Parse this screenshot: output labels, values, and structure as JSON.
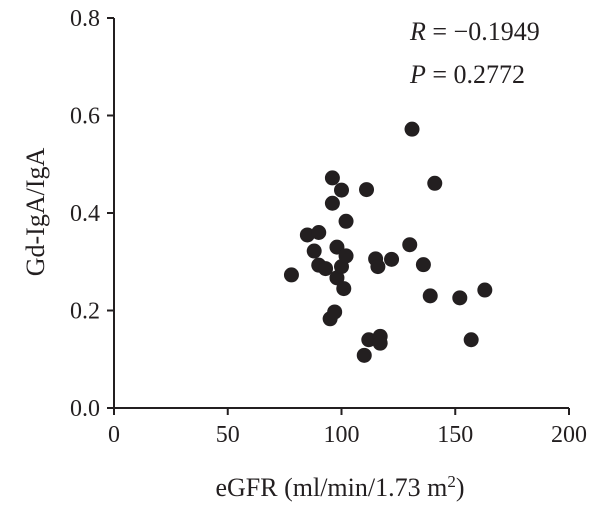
{
  "chart_data": {
    "type": "scatter",
    "xlabel": "eGFR (ml/min/1.73 m",
    "xlabel_sup": "2",
    "xlabel_close": ")",
    "ylabel": "Gd-IgA/IgA",
    "xlim": [
      0,
      200
    ],
    "ylim": [
      0,
      0.8
    ],
    "x_ticks": [
      0,
      50,
      100,
      150,
      200
    ],
    "x_tick_labels": [
      "0",
      "50",
      "100",
      "150",
      "200"
    ],
    "y_ticks": [
      0,
      0.2,
      0.4,
      0.6,
      0.8
    ],
    "y_tick_labels": [
      "0.0",
      "0.2",
      "0.4",
      "0.6",
      "0.8"
    ],
    "grid": false,
    "legend": "none",
    "marker_color": "#231f20",
    "annotations": {
      "r_symbol": "R",
      "r_value": " = −0.1949",
      "p_symbol": "P",
      "p_value": " = 0.2772"
    },
    "points": [
      {
        "x": 78,
        "y": 0.273
      },
      {
        "x": 85,
        "y": 0.355
      },
      {
        "x": 88,
        "y": 0.322
      },
      {
        "x": 90,
        "y": 0.293
      },
      {
        "x": 90,
        "y": 0.36
      },
      {
        "x": 93,
        "y": 0.286
      },
      {
        "x": 95,
        "y": 0.183
      },
      {
        "x": 96,
        "y": 0.42
      },
      {
        "x": 96,
        "y": 0.472
      },
      {
        "x": 97,
        "y": 0.197
      },
      {
        "x": 98,
        "y": 0.33
      },
      {
        "x": 98,
        "y": 0.267
      },
      {
        "x": 100,
        "y": 0.29
      },
      {
        "x": 100,
        "y": 0.447
      },
      {
        "x": 101,
        "y": 0.245
      },
      {
        "x": 102,
        "y": 0.383
      },
      {
        "x": 102,
        "y": 0.312
      },
      {
        "x": 110,
        "y": 0.108
      },
      {
        "x": 111,
        "y": 0.448
      },
      {
        "x": 112,
        "y": 0.14
      },
      {
        "x": 115,
        "y": 0.306
      },
      {
        "x": 116,
        "y": 0.29
      },
      {
        "x": 117,
        "y": 0.147
      },
      {
        "x": 117,
        "y": 0.133
      },
      {
        "x": 122,
        "y": 0.305
      },
      {
        "x": 130,
        "y": 0.335
      },
      {
        "x": 131,
        "y": 0.572
      },
      {
        "x": 136,
        "y": 0.294
      },
      {
        "x": 139,
        "y": 0.23
      },
      {
        "x": 141,
        "y": 0.461
      },
      {
        "x": 152,
        "y": 0.226
      },
      {
        "x": 157,
        "y": 0.14
      },
      {
        "x": 163,
        "y": 0.242
      }
    ]
  }
}
